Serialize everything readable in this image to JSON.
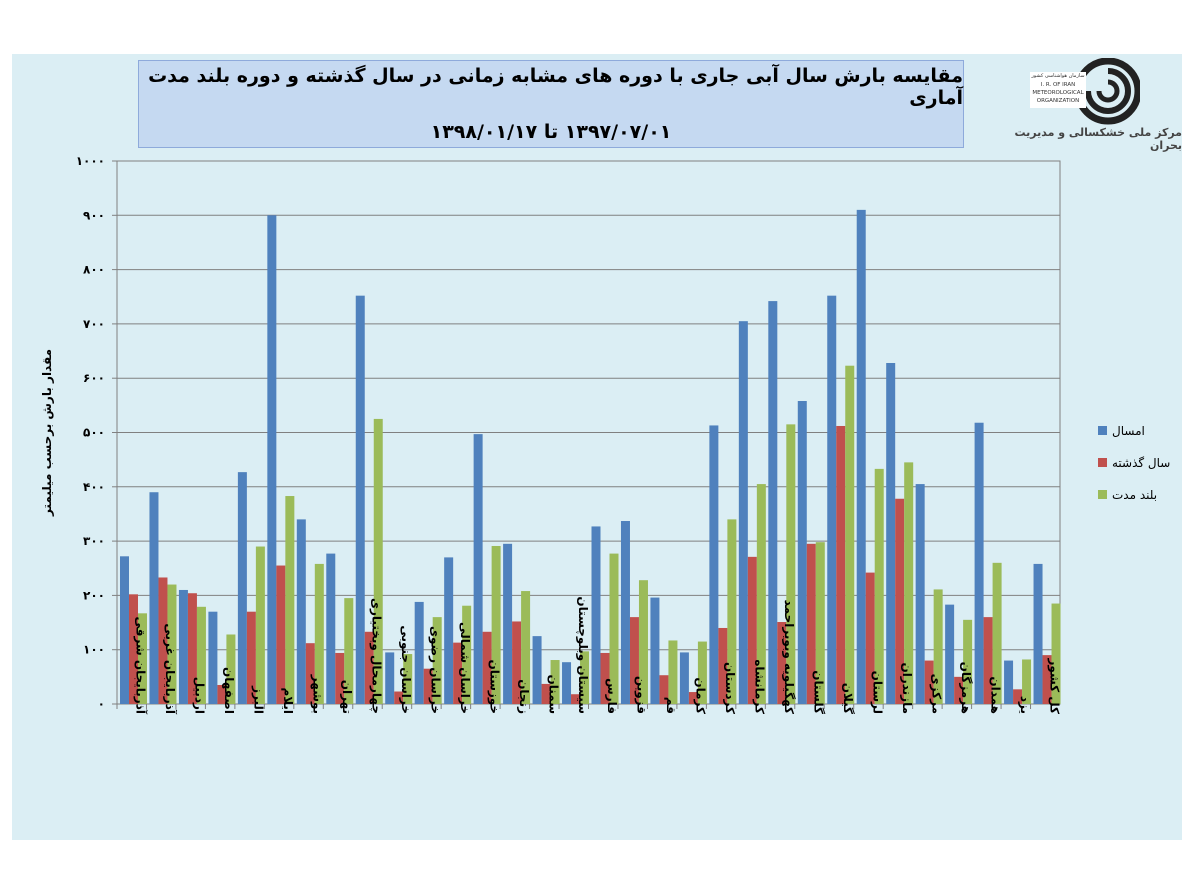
{
  "header": {
    "title_line1": "مقایسه بارش سال آبی جاری با دوره های مشابه زمانی در سال گذشته و دوره بلند مدت آماری",
    "title_line2": "۱۳۹۷/۰۷/۰۱ تا ۱۳۹۸/۰۱/۱۷"
  },
  "logo": {
    "caption": "مرکز ملی خشکسالی و مدیریت بحران",
    "org_text": [
      "سازمان هواشناسی کشور",
      "I. R. OF IRAN",
      "METEOROLOGICAL",
      "ORGANIZATION"
    ]
  },
  "colors": {
    "series1": "#4f81bd",
    "series2": "#c0504d",
    "series3": "#9bbb59",
    "grid": "#808080",
    "panel": "#dbeef4"
  },
  "chart_data": {
    "type": "bar",
    "ylabel": "مقدار بارش برحسب میلیمتر",
    "ylim": [
      0,
      1000
    ],
    "yticks": [
      0,
      100,
      200,
      300,
      400,
      500,
      600,
      700,
      800,
      900,
      1000
    ],
    "ytick_labels": [
      "۰",
      "۱۰۰",
      "۲۰۰",
      "۳۰۰",
      "۴۰۰",
      "۵۰۰",
      "۶۰۰",
      "۷۰۰",
      "۸۰۰",
      "۹۰۰",
      "۱۰۰۰"
    ],
    "grid": true,
    "legend_position": "right",
    "categories": [
      "آذربایجان شرقی",
      "آذربایجان غربی",
      "اردبیل",
      "اصفهان",
      "البرز",
      "ایلام",
      "بوشهر",
      "تهران",
      "چهارمحال وبختیاری",
      "خراسان جنوبی",
      "خراسان رضوی",
      "خراسان شمالی",
      "خوزستان",
      "زنجان",
      "سمنان",
      "سیستان وبلوچستان",
      "فارس",
      "قزوین",
      "قم",
      "کرمان",
      "کردستان",
      "کرمانشاه",
      "کهگیلویه وبویراحمد",
      "گلستان",
      "گیلان",
      "لرستان",
      "مازندران",
      "مرکزی",
      "هرمزگان",
      "همدان",
      "یزد",
      "کل کشور"
    ],
    "series": [
      {
        "name": "امسال",
        "values": [
          272,
          390,
          210,
          170,
          427,
          900,
          340,
          277,
          752,
          95,
          188,
          270,
          497,
          295,
          125,
          77,
          327,
          337,
          196,
          95,
          513,
          705,
          742,
          558,
          752,
          910,
          628,
          405,
          183,
          518,
          80,
          258
        ]
      },
      {
        "name": "سال گذشته",
        "values": [
          202,
          233,
          204,
          35,
          170,
          255,
          112,
          94,
          133,
          23,
          65,
          113,
          133,
          152,
          37,
          18,
          94,
          160,
          53,
          22,
          140,
          271,
          151,
          295,
          512,
          242,
          378,
          80,
          50,
          160,
          27,
          90
        ]
      },
      {
        "name": "بلند مدت",
        "values": [
          167,
          220,
          179,
          128,
          290,
          383,
          258,
          195,
          525,
          92,
          160,
          181,
          291,
          208,
          81,
          97,
          277,
          228,
          117,
          115,
          340,
          405,
          515,
          298,
          623,
          433,
          445,
          211,
          155,
          260,
          82,
          185
        ]
      }
    ]
  }
}
